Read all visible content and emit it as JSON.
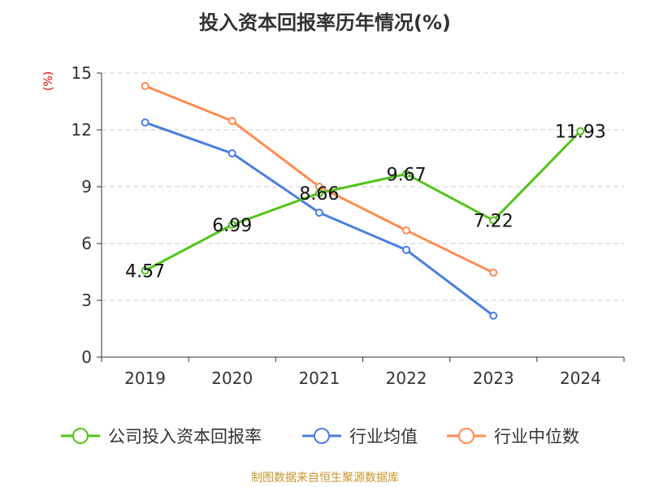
{
  "chart_data": {
    "type": "line",
    "title": "投入资本回报率历年情况(%)",
    "ylabel": "(%)",
    "categories": [
      "2019",
      "2020",
      "2021",
      "2022",
      "2023",
      "2024"
    ],
    "ylim": [
      0,
      15
    ],
    "yticks": [
      0,
      3,
      6,
      9,
      12,
      15
    ],
    "grid": true,
    "legend_position": "bottom",
    "series": [
      {
        "name": "公司投入资本回报率",
        "color": "#52c41a",
        "values": [
          4.57,
          6.99,
          8.66,
          9.67,
          7.22,
          11.93
        ],
        "labels": [
          "4.57",
          "6.99",
          "8.66",
          "9.67",
          "7.22",
          "11.93"
        ]
      },
      {
        "name": "行业均值",
        "color": "#4a7ee0",
        "values": [
          12.39,
          10.76,
          7.63,
          5.66,
          2.19,
          null
        ]
      },
      {
        "name": "行业中位数",
        "color": "#ff8c52",
        "values": [
          14.32,
          12.47,
          9.0,
          6.69,
          4.46,
          null
        ]
      }
    ]
  },
  "source": "制图数据来自恒生聚源数据库"
}
